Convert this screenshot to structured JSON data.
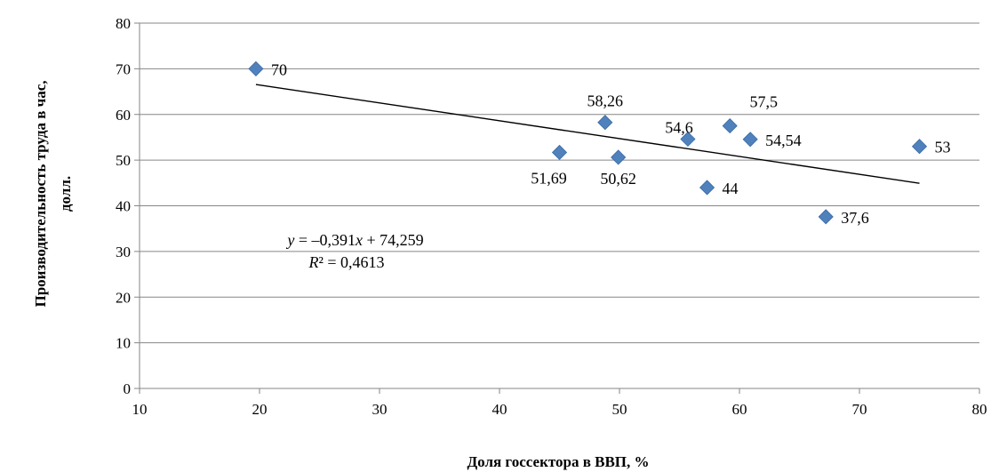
{
  "chart_data": {
    "type": "scatter",
    "title": "",
    "xlabel": "Доля госсектора в ВВП, %",
    "ylabel_line1": "Производительность труда в час,",
    "ylabel_line2": "долл.",
    "xlim": [
      10,
      80
    ],
    "ylim": [
      0,
      80
    ],
    "x_ticks": [
      10,
      20,
      30,
      40,
      50,
      60,
      70,
      80
    ],
    "y_ticks": [
      0,
      10,
      20,
      30,
      40,
      50,
      60,
      70,
      80
    ],
    "grid": "horizontal",
    "marker": "diamond",
    "colors": {
      "marker": "#4F81BD",
      "marker_edge": "#3A6AA5",
      "trendline": "#000000",
      "grid": "#868686"
    },
    "points": [
      {
        "x": 19.7,
        "y": 70,
        "label": "70",
        "label_pos": "right"
      },
      {
        "x": 45.0,
        "y": 51.69,
        "label": "51,69",
        "label_pos": "below-left"
      },
      {
        "x": 48.8,
        "y": 58.26,
        "label": "58,26",
        "label_pos": "above"
      },
      {
        "x": 49.9,
        "y": 50.62,
        "label": "50,62",
        "label_pos": "below"
      },
      {
        "x": 55.7,
        "y": 54.6,
        "label": "54,6",
        "label_pos": "above-left"
      },
      {
        "x": 57.3,
        "y": 44,
        "label": "44",
        "label_pos": "right"
      },
      {
        "x": 59.2,
        "y": 57.5,
        "label": "57,5",
        "label_pos": "above-right"
      },
      {
        "x": 60.9,
        "y": 54.54,
        "label": "54,54",
        "label_pos": "right"
      },
      {
        "x": 67.2,
        "y": 37.6,
        "label": "37,6",
        "label_pos": "right"
      },
      {
        "x": 75.0,
        "y": 53,
        "label": "53",
        "label_pos": "right"
      }
    ],
    "trendline": {
      "type": "linear",
      "slope": -0.391,
      "intercept": 74.259,
      "x_range": [
        19.7,
        75.0
      ],
      "equation_y": "y",
      "equation_rest": " = –0,391",
      "equation_x": "x",
      "equation_tail": " + 74,259",
      "r2_R": "R",
      "r2_rest": "² = 0,4613"
    }
  }
}
